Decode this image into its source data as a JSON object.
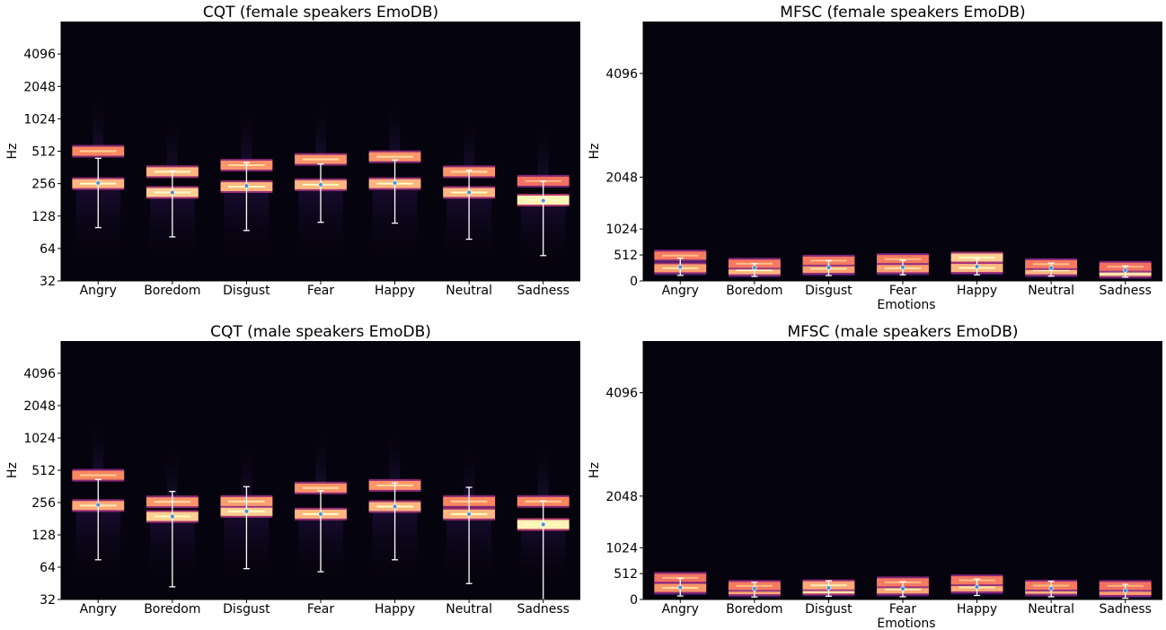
{
  "chart_data": [
    {
      "id": "cqt-female",
      "type": "heatmap",
      "scale": "log2",
      "title": "CQT (female speakers EmoDB)",
      "ylabel": "Hz",
      "xlabel": "",
      "categories": [
        "Angry",
        "Boredom",
        "Disgust",
        "Fear",
        "Happy",
        "Neutral",
        "Sadness"
      ],
      "yticks": [
        32,
        64,
        128,
        256,
        512,
        1024,
        2048,
        4096
      ],
      "ylim": [
        32,
        8192
      ],
      "colormap": "magma",
      "bands": [
        [
          256,
          512
        ],
        [
          212,
          330
        ],
        [
          240,
          380
        ],
        [
          250,
          430
        ],
        [
          256,
          455
        ],
        [
          212,
          330
        ],
        [
          180,
          270
        ]
      ],
      "band_intensity": [
        [
          0.85,
          0.75
        ],
        [
          0.9,
          0.85
        ],
        [
          0.85,
          0.78
        ],
        [
          0.85,
          0.78
        ],
        [
          0.85,
          0.78
        ],
        [
          0.85,
          0.78
        ],
        [
          0.98,
          0.7
        ]
      ],
      "means": [
        260,
        212,
        244,
        250,
        260,
        212,
        178
      ],
      "error_low": [
        100,
        82,
        94,
        112,
        110,
        78,
        55
      ],
      "error_high": [
        440,
        335,
        400,
        390,
        425,
        340,
        270
      ]
    },
    {
      "id": "mfsc-female",
      "type": "heatmap",
      "scale": "linear",
      "title": "MFSC (female speakers EmoDB)",
      "ylabel": "Hz",
      "xlabel": "Emotions",
      "categories": [
        "Angry",
        "Boredom",
        "Disgust",
        "Fear",
        "Happy",
        "Neutral",
        "Sadness"
      ],
      "yticks": [
        0,
        512,
        1024,
        2048,
        4096
      ],
      "ylim": [
        0,
        5120
      ],
      "colormap": "magma",
      "bands": [
        [
          250,
          500
        ],
        [
          210,
          340
        ],
        [
          240,
          400
        ],
        [
          250,
          430
        ],
        [
          256,
          460
        ],
        [
          210,
          330
        ],
        [
          180,
          280
        ]
      ],
      "band_intensity": [
        [
          0.8,
          0.72
        ],
        [
          0.85,
          0.72
        ],
        [
          0.8,
          0.72
        ],
        [
          0.8,
          0.72
        ],
        [
          0.85,
          0.9
        ],
        [
          0.85,
          0.72
        ],
        [
          0.95,
          0.7
        ]
      ],
      "means": [
        275,
        260,
        265,
        270,
        285,
        255,
        215
      ],
      "error_low": [
        110,
        90,
        105,
        120,
        120,
        95,
        75
      ],
      "error_high": [
        450,
        340,
        400,
        405,
        440,
        350,
        295
      ]
    },
    {
      "id": "cqt-male",
      "type": "heatmap",
      "scale": "log2",
      "title": "CQT (male speakers EmoDB)",
      "ylabel": "Hz",
      "xlabel": "",
      "categories": [
        "Angry",
        "Boredom",
        "Disgust",
        "Fear",
        "Happy",
        "Neutral",
        "Sadness"
      ],
      "yticks": [
        32,
        64,
        128,
        256,
        512,
        1024,
        2048,
        4096
      ],
      "ylim": [
        32,
        8192
      ],
      "colormap": "magma",
      "bands": [
        [
          240,
          460
        ],
        [
          190,
          260
        ],
        [
          212,
          262
        ],
        [
          200,
          350
        ],
        [
          235,
          370
        ],
        [
          200,
          262
        ],
        [
          160,
          262
        ]
      ],
      "band_intensity": [
        [
          0.82,
          0.75
        ],
        [
          0.9,
          0.78
        ],
        [
          0.9,
          0.8
        ],
        [
          0.85,
          0.78
        ],
        [
          0.85,
          0.78
        ],
        [
          0.85,
          0.75
        ],
        [
          0.98,
          0.75
        ]
      ],
      "means": [
        244,
        190,
        212,
        200,
        235,
        200,
        160
      ],
      "error_low": [
        75,
        42,
        62,
        58,
        75,
        45,
        32
      ],
      "error_high": [
        420,
        325,
        360,
        330,
        390,
        355,
        265
      ]
    },
    {
      "id": "mfsc-male",
      "type": "heatmap",
      "scale": "linear",
      "title": "MFSC (male speakers EmoDB)",
      "ylabel": "Hz",
      "xlabel": "Emotions",
      "categories": [
        "Angry",
        "Boredom",
        "Disgust",
        "Fear",
        "Happy",
        "Neutral",
        "Sadness"
      ],
      "yticks": [
        0,
        512,
        1024,
        2048,
        4096
      ],
      "ylim": [
        0,
        5120
      ],
      "colormap": "magma",
      "bands": [
        [
          230,
          430
        ],
        [
          185,
          270
        ],
        [
          200,
          280
        ],
        [
          200,
          340
        ],
        [
          240,
          380
        ],
        [
          195,
          275
        ],
        [
          170,
          270
        ]
      ],
      "band_intensity": [
        [
          0.78,
          0.7
        ],
        [
          0.82,
          0.72
        ],
        [
          0.95,
          0.82
        ],
        [
          0.82,
          0.72
        ],
        [
          0.82,
          0.72
        ],
        [
          0.85,
          0.72
        ],
        [
          0.8,
          0.7
        ]
      ],
      "means": [
        240,
        215,
        230,
        215,
        250,
        215,
        175
      ],
      "error_low": [
        70,
        50,
        65,
        55,
        80,
        55,
        25
      ],
      "error_high": [
        420,
        340,
        370,
        350,
        405,
        360,
        300
      ]
    }
  ]
}
